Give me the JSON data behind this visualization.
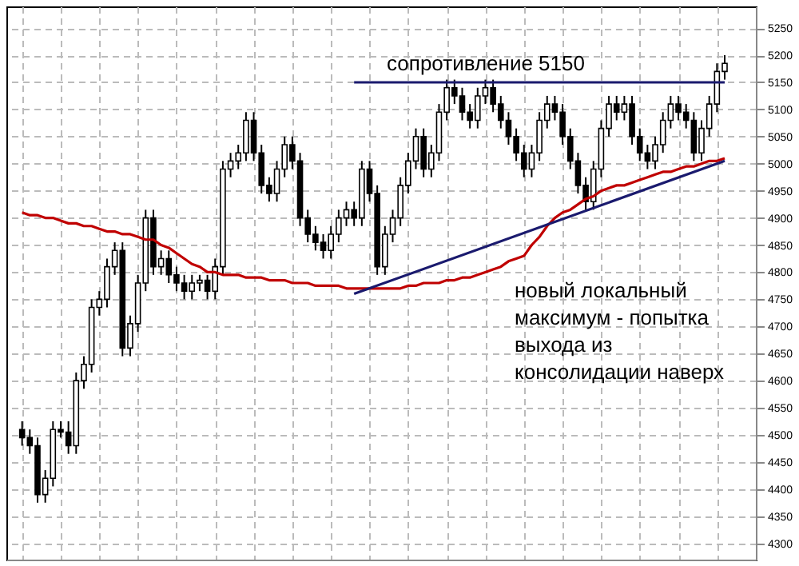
{
  "chart_data": {
    "type": "candlestick",
    "color": "#000000",
    "tick_labels": "y",
    "grid": true,
    "categories": [
      null,
      null,
      null,
      null,
      null,
      null,
      null,
      null,
      null,
      null,
      null,
      null,
      null,
      null,
      null,
      null,
      null,
      null,
      null,
      null,
      null,
      null,
      null,
      null,
      null,
      null,
      null,
      null,
      null,
      null,
      null,
      null,
      null,
      null,
      null,
      null,
      null,
      null,
      null,
      null,
      null,
      null,
      null,
      null,
      null,
      null,
      null,
      null,
      null,
      null,
      null,
      null,
      null,
      null,
      null,
      null,
      null,
      null,
      null,
      null,
      null,
      null,
      null,
      null,
      null,
      null,
      null,
      null,
      null,
      null,
      null,
      null,
      null,
      null,
      null,
      null,
      null,
      null,
      null,
      null,
      null,
      null,
      null,
      null,
      null,
      null,
      null,
      null,
      null,
      null,
      null,
      null
    ],
    "ohlc": [
      [
        4510,
        4525,
        4480,
        4495
      ],
      [
        4495,
        4510,
        4465,
        4480
      ],
      [
        4480,
        4495,
        4375,
        4390
      ],
      [
        4390,
        4435,
        4375,
        4420
      ],
      [
        4420,
        4525,
        4405,
        4510
      ],
      [
        4510,
        4525,
        4495,
        4505
      ],
      [
        4505,
        4525,
        4465,
        4480
      ],
      [
        4480,
        4615,
        4465,
        4600
      ],
      [
        4600,
        4645,
        4585,
        4630
      ],
      [
        4630,
        4750,
        4615,
        4735
      ],
      [
        4735,
        4765,
        4720,
        4750
      ],
      [
        4750,
        4825,
        4735,
        4810
      ],
      [
        4810,
        4855,
        4795,
        4840
      ],
      [
        4840,
        4855,
        4645,
        4660
      ],
      [
        4660,
        4720,
        4645,
        4705
      ],
      [
        4705,
        4795,
        4690,
        4780
      ],
      [
        4780,
        4915,
        4765,
        4900
      ],
      [
        4900,
        4915,
        4795,
        4810
      ],
      [
        4810,
        4840,
        4795,
        4825
      ],
      [
        4825,
        4840,
        4780,
        4795
      ],
      [
        4795,
        4810,
        4765,
        4780
      ],
      [
        4780,
        4795,
        4750,
        4765
      ],
      [
        4765,
        4795,
        4750,
        4780
      ],
      [
        4780,
        4795,
        4765,
        4785
      ],
      [
        4785,
        4795,
        4750,
        4765
      ],
      [
        4765,
        4825,
        4750,
        4810
      ],
      [
        4810,
        5005,
        4795,
        4990
      ],
      [
        4990,
        5020,
        4975,
        5005
      ],
      [
        5005,
        5035,
        4990,
        5020
      ],
      [
        5020,
        5095,
        5005,
        5080
      ],
      [
        5080,
        5095,
        5005,
        5020
      ],
      [
        5020,
        5035,
        4945,
        4960
      ],
      [
        4960,
        4975,
        4930,
        4945
      ],
      [
        4945,
        5005,
        4930,
        4990
      ],
      [
        4990,
        5050,
        4975,
        5035
      ],
      [
        5035,
        5050,
        4990,
        5005
      ],
      [
        5005,
        5020,
        4885,
        4900
      ],
      [
        4900,
        4915,
        4855,
        4870
      ],
      [
        4870,
        4885,
        4840,
        4855
      ],
      [
        4855,
        4870,
        4825,
        4840
      ],
      [
        4840,
        4885,
        4825,
        4870
      ],
      [
        4870,
        4915,
        4855,
        4900
      ],
      [
        4900,
        4930,
        4885,
        4915
      ],
      [
        4915,
        4930,
        4885,
        4900
      ],
      [
        4900,
        5005,
        4885,
        4990
      ],
      [
        4990,
        5005,
        4930,
        4945
      ],
      [
        4945,
        4960,
        4795,
        4810
      ],
      [
        4810,
        4885,
        4795,
        4870
      ],
      [
        4870,
        4915,
        4855,
        4900
      ],
      [
        4900,
        4975,
        4885,
        4960
      ],
      [
        4960,
        5020,
        4945,
        5005
      ],
      [
        5005,
        5065,
        4990,
        5050
      ],
      [
        5050,
        5065,
        4975,
        4990
      ],
      [
        4990,
        5035,
        4975,
        5020
      ],
      [
        5020,
        5110,
        5005,
        5095
      ],
      [
        5095,
        5155,
        5080,
        5140
      ],
      [
        5140,
        5155,
        5110,
        5125
      ],
      [
        5125,
        5140,
        5080,
        5095
      ],
      [
        5095,
        5110,
        5065,
        5080
      ],
      [
        5080,
        5140,
        5065,
        5125
      ],
      [
        5125,
        5155,
        5110,
        5140
      ],
      [
        5140,
        5155,
        5095,
        5110
      ],
      [
        5110,
        5125,
        5065,
        5080
      ],
      [
        5080,
        5095,
        5035,
        5050
      ],
      [
        5050,
        5065,
        5005,
        5020
      ],
      [
        5020,
        5035,
        4975,
        4990
      ],
      [
        4990,
        5035,
        4975,
        5020
      ],
      [
        5020,
        5095,
        5005,
        5080
      ],
      [
        5080,
        5125,
        5065,
        5110
      ],
      [
        5110,
        5125,
        5080,
        5095
      ],
      [
        5095,
        5110,
        5035,
        5050
      ],
      [
        5050,
        5065,
        4990,
        5005
      ],
      [
        5005,
        5020,
        4945,
        4960
      ],
      [
        4960,
        4975,
        4915,
        4930
      ],
      [
        4930,
        5005,
        4915,
        4990
      ],
      [
        4990,
        5080,
        4975,
        5065
      ],
      [
        5065,
        5125,
        5050,
        5110
      ],
      [
        5110,
        5125,
        5080,
        5095
      ],
      [
        5095,
        5125,
        5080,
        5110
      ],
      [
        5110,
        5125,
        5035,
        5050
      ],
      [
        5050,
        5065,
        5005,
        5020
      ],
      [
        5020,
        5035,
        4990,
        5005
      ],
      [
        5005,
        5050,
        4990,
        5035
      ],
      [
        5035,
        5095,
        5020,
        5080
      ],
      [
        5080,
        5125,
        5065,
        5110
      ],
      [
        5110,
        5125,
        5080,
        5095
      ],
      [
        5095,
        5110,
        5065,
        5080
      ],
      [
        5080,
        5095,
        5005,
        5020
      ],
      [
        5020,
        5080,
        5005,
        5065
      ],
      [
        5065,
        5125,
        5050,
        5110
      ],
      [
        5110,
        5185,
        5095,
        5170
      ],
      [
        5170,
        5200,
        5155,
        5185
      ]
    ],
    "series": [
      {
        "type": "line",
        "color": "#c00000",
        "values": [
          4910,
          4905,
          4905,
          4900,
          4900,
          4895,
          4890,
          4890,
          4885,
          4885,
          4880,
          4875,
          4875,
          4870,
          4870,
          4865,
          4860,
          4860,
          4850,
          4845,
          4835,
          4825,
          4815,
          4810,
          4800,
          4800,
          4795,
          4795,
          4795,
          4790,
          4790,
          4790,
          4785,
          4785,
          4785,
          4780,
          4780,
          4780,
          4775,
          4775,
          4775,
          4775,
          4770,
          4770,
          4770,
          4770,
          4770,
          4770,
          4770,
          4770,
          4775,
          4775,
          4780,
          4780,
          4780,
          4785,
          4785,
          4790,
          4790,
          4795,
          4800,
          4805,
          4810,
          4820,
          4825,
          4830,
          4850,
          4865,
          4885,
          4900,
          4910,
          4915,
          4925,
          4935,
          4940,
          4950,
          4955,
          4960,
          4960,
          4965,
          4970,
          4975,
          4980,
          4985,
          4985,
          4990,
          4995,
          4995,
          5000,
          5005,
          5005,
          5010
        ]
      },
      {
        "type": "line",
        "color": "#1a1a6e",
        "values": [
          null,
          null,
          null,
          null,
          null,
          null,
          null,
          null,
          null,
          null,
          null,
          null,
          null,
          null,
          null,
          null,
          null,
          null,
          null,
          null,
          null,
          null,
          null,
          null,
          null,
          null,
          null,
          null,
          null,
          null,
          null,
          null,
          null,
          null,
          null,
          null,
          null,
          null,
          null,
          null,
          null,
          null,
          null,
          4760,
          null,
          null,
          null,
          null,
          null,
          null,
          null,
          null,
          null,
          null,
          null,
          null,
          null,
          null,
          null,
          null,
          null,
          null,
          null,
          null,
          null,
          null,
          null,
          null,
          null,
          null,
          null,
          null,
          null,
          null,
          null,
          null,
          null,
          null,
          null,
          null,
          null,
          null,
          null,
          null,
          null,
          null,
          null,
          null,
          null,
          null,
          null,
          5005
        ]
      },
      {
        "type": "line",
        "color": "#1a1a6e",
        "values": [
          null,
          null,
          null,
          null,
          null,
          null,
          null,
          null,
          null,
          null,
          null,
          null,
          null,
          null,
          null,
          null,
          null,
          null,
          null,
          null,
          null,
          null,
          null,
          null,
          null,
          null,
          null,
          null,
          null,
          null,
          null,
          null,
          null,
          null,
          null,
          null,
          null,
          null,
          null,
          null,
          null,
          null,
          null,
          5150,
          null,
          null,
          null,
          null,
          null,
          null,
          null,
          null,
          null,
          null,
          null,
          null,
          null,
          null,
          null,
          null,
          null,
          null,
          null,
          null,
          null,
          null,
          null,
          null,
          null,
          null,
          null,
          null,
          null,
          null,
          null,
          null,
          null,
          null,
          null,
          null,
          null,
          null,
          null,
          null,
          null,
          null,
          null,
          null,
          null,
          null,
          null,
          5150
        ]
      }
    ],
    "ylim": [
      4270,
      5290
    ],
    "yticks": [
      4300,
      4350,
      4400,
      4450,
      4500,
      4550,
      4600,
      4650,
      4700,
      4750,
      4800,
      4850,
      4900,
      4950,
      5000,
      5050,
      5100,
      5150,
      5200,
      5250
    ],
    "annotations": [
      "сопротивление 5150",
      "новый локальный\nмаксимум - попытка\nвыхода из\nконсолидации наверх"
    ]
  }
}
